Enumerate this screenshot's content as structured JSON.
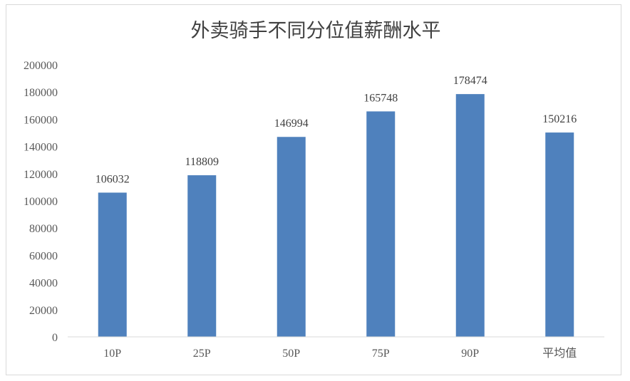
{
  "chart_data": {
    "type": "bar",
    "title": "外卖骑手不同分位值薪酬水平",
    "categories": [
      "10P",
      "25P",
      "50P",
      "75P",
      "90P",
      "平均值"
    ],
    "values": [
      106032,
      118809,
      146994,
      165748,
      178474,
      150216
    ],
    "data_labels": [
      "106032",
      "118809",
      "146994",
      "165748",
      "178474",
      "150216"
    ],
    "ylim": [
      0,
      200000
    ],
    "y_ticks": [
      "0",
      "20000",
      "40000",
      "60000",
      "80000",
      "100000",
      "120000",
      "140000",
      "160000",
      "180000",
      "200000"
    ],
    "xlabel": "",
    "ylabel": "",
    "grid": false,
    "legend": "none",
    "bar_color": "#4f81bd"
  }
}
